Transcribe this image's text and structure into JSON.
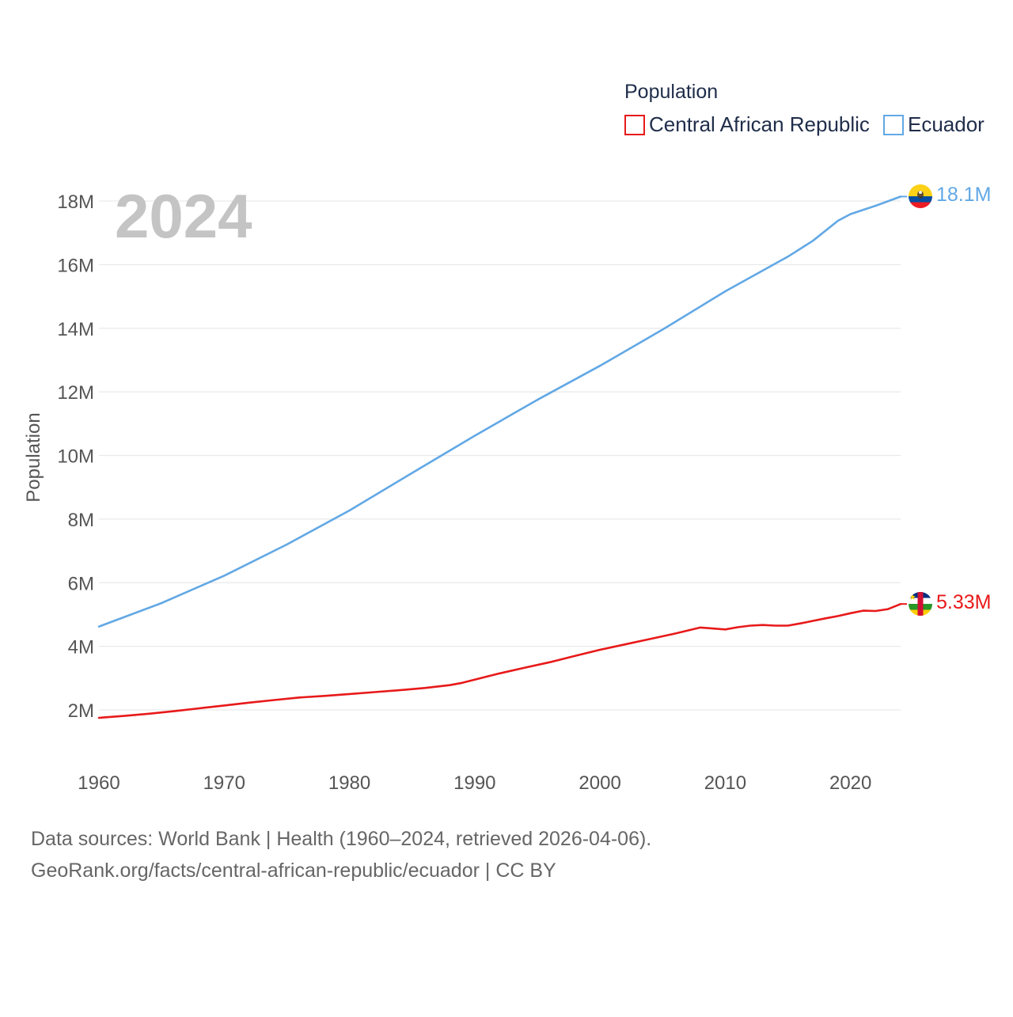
{
  "source_lines": [
    "Data sources: World Bank | Health (1960–2024, retrieved 2026-04-06).",
    "GeoRank.org/facts/central-african-republic/ecuador | CC BY"
  ],
  "year_watermark": "2024",
  "colors": {
    "car": "#e8191a",
    "ecuador": "#62a8e5",
    "grid": "#e9e9e9",
    "text": "#555555",
    "legend_text": "#1f2d4a"
  },
  "chart_data": {
    "type": "line",
    "title": "",
    "xlabel": "",
    "ylabel": "Population",
    "xlim": [
      1960,
      2024
    ],
    "ylim": [
      1000000,
      19000000
    ],
    "x_ticks": [
      1960,
      1970,
      1980,
      1990,
      2000,
      2010,
      2020
    ],
    "x_tick_labels": [
      "1960",
      "1970",
      "1980",
      "1990",
      "2000",
      "2010",
      "2020"
    ],
    "y_ticks": [
      2000000,
      4000000,
      6000000,
      8000000,
      10000000,
      12000000,
      14000000,
      16000000,
      18000000
    ],
    "y_tick_labels": [
      "2M",
      "4M",
      "6M",
      "8M",
      "10M",
      "12M",
      "14M",
      "16M",
      "18M"
    ],
    "grid": true,
    "legend": {
      "title": "Population",
      "position": "top-right",
      "entries": [
        "Central African Republic",
        "Ecuador"
      ]
    },
    "series": [
      {
        "name": "Central African Republic",
        "color": "#e8191a",
        "end_label": "5.33M",
        "x": [
          1960,
          1962,
          1964,
          1966,
          1968,
          1970,
          1972,
          1974,
          1976,
          1978,
          1980,
          1982,
          1984,
          1986,
          1988,
          1989,
          1990,
          1992,
          1994,
          1996,
          1998,
          2000,
          2002,
          2004,
          2006,
          2008,
          2010,
          2011,
          2012,
          2013,
          2014,
          2015,
          2016,
          2017,
          2018,
          2019,
          2020,
          2021,
          2022,
          2023,
          2024
        ],
        "values": [
          1750000,
          1810000,
          1880000,
          1960000,
          2050000,
          2140000,
          2230000,
          2310000,
          2390000,
          2440000,
          2500000,
          2560000,
          2620000,
          2690000,
          2780000,
          2850000,
          2950000,
          3150000,
          3330000,
          3500000,
          3700000,
          3890000,
          4060000,
          4230000,
          4400000,
          4590000,
          4530000,
          4600000,
          4650000,
          4670000,
          4650000,
          4650000,
          4720000,
          4800000,
          4880000,
          4950000,
          5040000,
          5120000,
          5110000,
          5170000,
          5330000
        ]
      },
      {
        "name": "Ecuador",
        "color": "#62a8e5",
        "end_label": "18.1M",
        "x": [
          1960,
          1965,
          1970,
          1975,
          1980,
          1985,
          1990,
          1995,
          2000,
          2005,
          2010,
          2015,
          2017,
          2019,
          2020,
          2022,
          2024
        ],
        "values": [
          4620000,
          5360000,
          6220000,
          7200000,
          8270000,
          9450000,
          10620000,
          11750000,
          12820000,
          13960000,
          15160000,
          16250000,
          16750000,
          17380000,
          17590000,
          17850000,
          18140000
        ]
      }
    ]
  }
}
